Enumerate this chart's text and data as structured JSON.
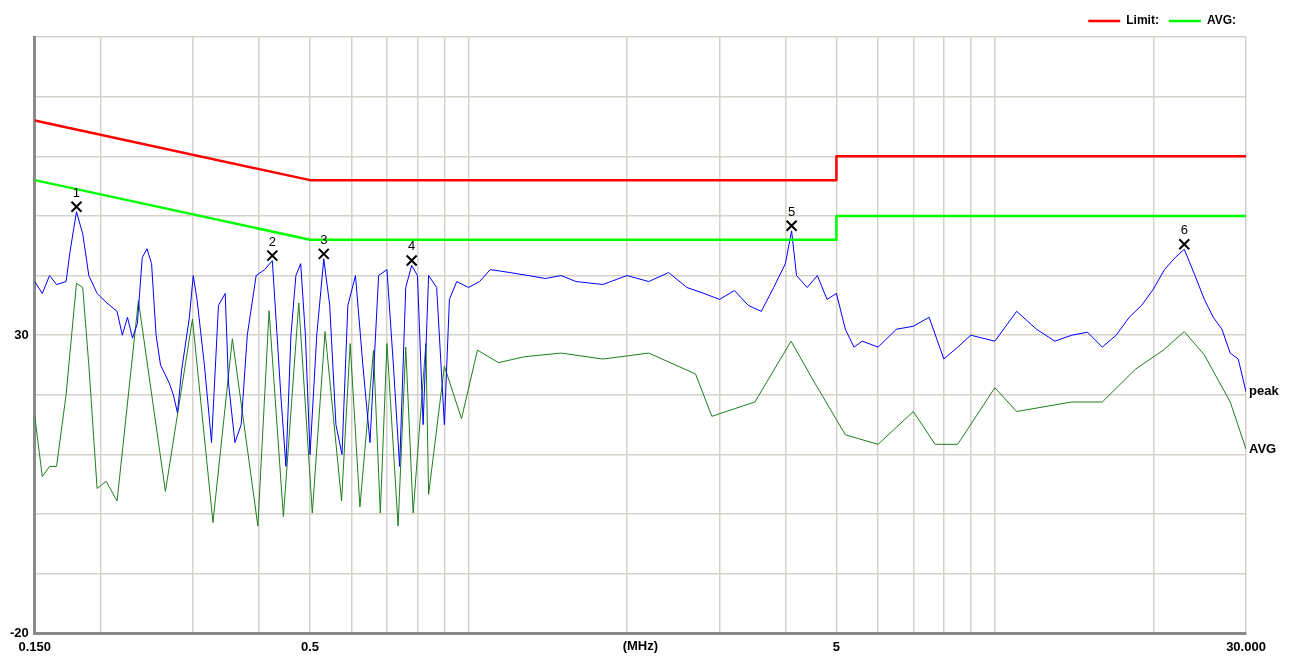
{
  "chart_data": {
    "type": "line",
    "xlabel": "(MHz)",
    "log": "x",
    "grid": true,
    "legend": "top right",
    "marker": "none",
    "line_style": "solid",
    "xlim": [
      0.15,
      30
    ],
    "xticks": [
      {
        "value": 0.15,
        "label": "0.150"
      },
      {
        "value": 0.2,
        "label": null
      },
      {
        "value": 0.3,
        "label": null
      },
      {
        "value": 0.4,
        "label": null
      },
      0.5,
      {
        "value": 0.6,
        "label": null
      },
      {
        "value": 0.7,
        "label": null
      },
      {
        "value": 0.8,
        "label": null
      },
      {
        "value": 0.9,
        "label": null
      },
      {
        "value": 1,
        "label": null
      },
      {
        "value": 2,
        "label": null
      },
      {
        "value": 3,
        "label": null
      },
      {
        "value": 4,
        "label": null
      },
      5,
      {
        "value": 6,
        "label": null
      },
      {
        "value": 7,
        "label": null
      },
      {
        "value": 8,
        "label": null
      },
      {
        "value": 9,
        "label": null
      },
      {
        "value": 10,
        "label": null
      },
      {
        "value": 20,
        "label": null
      },
      {
        "value": 30,
        "label": "30.000"
      }
    ],
    "ylim": [
      -20,
      80
    ],
    "yticks": [
      -20,
      {
        "value": -10,
        "label": null
      },
      {
        "value": 0,
        "label": null
      },
      {
        "value": 10,
        "label": null
      },
      {
        "value": 20,
        "label": null
      },
      30,
      {
        "value": 40,
        "label": null
      },
      {
        "value": 50,
        "label": null
      },
      {
        "value": 60,
        "label": null
      },
      {
        "value": 70,
        "label": null
      },
      {
        "value": 80,
        "label": null
      }
    ],
    "series": [
      {
        "name": "Limit:",
        "color": "#ff0000",
        "x": [
          0.15,
          0.5,
          5,
          5,
          30
        ],
        "values": [
          66,
          56,
          56,
          60,
          60
        ]
      },
      {
        "name": "AVG:",
        "color": "#00ff00",
        "x": [
          0.15,
          0.5,
          5,
          5,
          30
        ],
        "values": [
          56,
          46,
          46,
          50,
          50
        ]
      },
      {
        "color": "#0000ff",
        "x": [
          0.15,
          0.155,
          0.16,
          0.165,
          0.172,
          0.175,
          0.18,
          0.185,
          0.19,
          0.197,
          0.205,
          0.215,
          0.22,
          0.225,
          0.23,
          0.235,
          0.24,
          0.245,
          0.25,
          0.255,
          0.26,
          0.27,
          0.275,
          0.28,
          0.285,
          0.295,
          0.3,
          0.305,
          0.315,
          0.325,
          0.335,
          0.345,
          0.35,
          0.36,
          0.37,
          0.38,
          0.395,
          0.41,
          0.424,
          0.44,
          0.45,
          0.46,
          0.47,
          0.48,
          0.49,
          0.5,
          0.515,
          0.531,
          0.545,
          0.56,
          0.575,
          0.59,
          0.61,
          0.63,
          0.65,
          0.675,
          0.7,
          0.72,
          0.74,
          0.76,
          0.78,
          0.8,
          0.82,
          0.84,
          0.87,
          0.9,
          0.92,
          0.95,
          1,
          1.05,
          1.1,
          1.2,
          1.3,
          1.4,
          1.5,
          1.6,
          1.8,
          2,
          2.2,
          2.4,
          2.6,
          2.8,
          3,
          3.2,
          3.4,
          3.6,
          3.8,
          4,
          4.11,
          4.2,
          4.4,
          4.6,
          4.8,
          5,
          5.2,
          5.4,
          5.6,
          6,
          6.5,
          7,
          7.5,
          8,
          8.5,
          9,
          10,
          11,
          12,
          13,
          14,
          15,
          16,
          17,
          18,
          19,
          20,
          21,
          22,
          22.9,
          24,
          25,
          26,
          27,
          28,
          29,
          30
        ],
        "values": [
          39,
          37,
          40,
          38.5,
          39,
          44,
          50.7,
          47,
          40,
          37,
          35.5,
          34,
          30,
          33,
          29.5,
          32,
          43,
          44.5,
          42,
          30,
          25,
          22,
          20,
          17,
          24,
          33,
          40,
          36,
          25,
          12,
          35,
          37,
          22,
          12,
          15,
          30,
          40,
          41,
          42.5,
          20,
          8,
          30,
          40,
          42,
          30,
          10,
          30,
          42.8,
          35,
          15,
          10,
          35,
          40,
          25,
          12,
          40,
          41,
          25,
          8,
          38,
          41.7,
          40,
          15,
          40,
          38,
          15,
          36,
          39,
          38,
          39,
          41,
          40.5,
          40,
          39.5,
          40,
          39,
          38.5,
          40,
          39,
          40.5,
          38,
          37,
          36,
          37.5,
          35,
          34,
          38,
          42,
          47.5,
          40,
          38,
          40,
          36,
          37,
          31,
          28,
          29,
          28,
          31,
          31.5,
          33,
          26,
          28,
          30,
          29,
          34,
          31,
          29,
          30,
          30.5,
          28,
          30,
          33,
          35,
          37.7,
          41,
          43,
          44.4,
          40,
          36,
          33,
          31,
          27,
          26,
          20.5
        ]
      },
      {
        "color": "#1e7f1e",
        "x": [
          0.15,
          0.155,
          0.16,
          0.165,
          0.172,
          0.18,
          0.185,
          0.19,
          0.197,
          0.205,
          0.215,
          0.236,
          0.2656,
          0.299,
          0.327,
          0.356,
          0.398,
          0.418,
          0.445,
          0.476,
          0.505,
          0.534,
          0.574,
          0.596,
          0.622,
          0.66,
          0.68,
          0.7,
          0.735,
          0.76,
          0.785,
          0.83,
          0.84,
          0.9,
          0.97,
          1.04,
          1.14,
          1.28,
          1.5,
          1.8,
          2.2,
          2.7,
          2.9,
          3.5,
          4.1,
          4.5,
          5.2,
          6,
          7,
          7.7,
          8.5,
          10,
          11,
          14,
          16,
          18.5,
          20.9,
          22.9,
          25,
          28,
          30
        ],
        "values": [
          16.4,
          6.3,
          8,
          8,
          20,
          38.7,
          38,
          25,
          4.3,
          5.5,
          2.2,
          35.8,
          3.8,
          32.7,
          -1.4,
          29.4,
          -2,
          34.1,
          -0.4,
          35.4,
          0.2,
          30.6,
          2.2,
          28.6,
          1.2,
          27.5,
          0.2,
          28.6,
          -2,
          28,
          0.2,
          28.6,
          3.3,
          24.8,
          16,
          27.5,
          25.4,
          26.4,
          27,
          26,
          27,
          23.5,
          16.4,
          18.8,
          29,
          22.7,
          13.3,
          11.7,
          17.2,
          11.7,
          11.7,
          21.2,
          17.2,
          18.8,
          18.8,
          24.3,
          27.5,
          30.6,
          26.7,
          18.8,
          10.9
        ]
      }
    ],
    "annotations": [
      {
        "text": "1",
        "x": 0.18,
        "y": 50.7
      },
      {
        "text": "2",
        "x": 0.424,
        "y": 42.5
      },
      {
        "text": "3",
        "x": 0.531,
        "y": 42.8
      },
      {
        "text": "4",
        "x": 0.78,
        "y": 41.7
      },
      {
        "text": "5",
        "x": 4.11,
        "y": 47.5
      },
      {
        "text": "6",
        "x": 22.9,
        "y": 44.4
      },
      {
        "text": "peak",
        "x": 30,
        "y": 20.5
      },
      {
        "text": "AVG",
        "x": 30,
        "y": 10.9
      }
    ]
  }
}
